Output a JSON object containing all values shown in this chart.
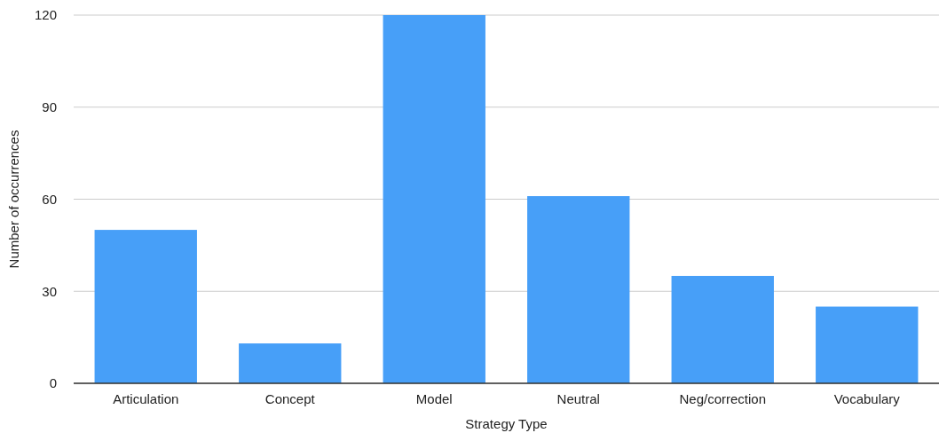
{
  "chart_data": {
    "type": "bar",
    "xlabel": "Strategy Type",
    "ylabel": "Number of occurrences",
    "categories": [
      "Articulation",
      "Concept",
      "Model",
      "Neutral",
      "Neg/correction",
      "Vocabulary"
    ],
    "values": [
      50,
      13,
      120,
      61,
      35,
      25
    ],
    "color": "#479ff8",
    "ylim": [
      0,
      120
    ],
    "yticks": [
      0,
      30,
      60,
      90,
      120
    ],
    "grid": "y"
  }
}
